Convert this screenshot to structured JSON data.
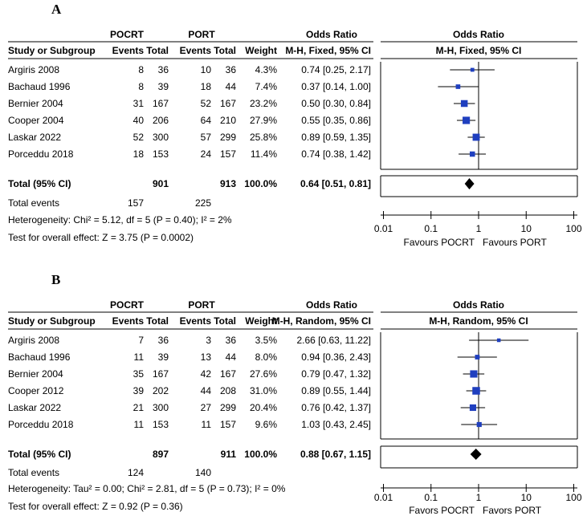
{
  "chart_data": [
    {
      "type": "forest",
      "panel": "A",
      "group_headers": [
        "POCRT",
        "PORT"
      ],
      "columns": [
        "Study or Subgroup",
        "Events",
        "Total",
        "Events",
        "Total",
        "Weight",
        "Odds Ratio",
        "Odds Ratio"
      ],
      "method": "M-H, Fixed, 95% CI",
      "studies": [
        {
          "name": "Argiris 2008",
          "e1": "8",
          "n1": "36",
          "e2": "10",
          "n2": "36",
          "weight": "4.3%",
          "ci_text": "0.74 [0.25, 2.17]",
          "or": 0.74,
          "lo": 0.25,
          "hi": 2.17,
          "w": 4.3
        },
        {
          "name": "Bachaud 1996",
          "e1": "8",
          "n1": "39",
          "e2": "18",
          "n2": "44",
          "weight": "7.4%",
          "ci_text": "0.37 [0.14, 1.00]",
          "or": 0.37,
          "lo": 0.14,
          "hi": 1.0,
          "w": 7.4
        },
        {
          "name": "Bernier 2004",
          "e1": "31",
          "n1": "167",
          "e2": "52",
          "n2": "167",
          "weight": "23.2%",
          "ci_text": "0.50 [0.30, 0.84]",
          "or": 0.5,
          "lo": 0.3,
          "hi": 0.84,
          "w": 23.2
        },
        {
          "name": "Cooper 2004",
          "e1": "40",
          "n1": "206",
          "e2": "64",
          "n2": "210",
          "weight": "27.9%",
          "ci_text": "0.55 [0.35, 0.86]",
          "or": 0.55,
          "lo": 0.35,
          "hi": 0.86,
          "w": 27.9
        },
        {
          "name": "Laskar 2022",
          "e1": "52",
          "n1": "300",
          "e2": "57",
          "n2": "299",
          "weight": "25.8%",
          "ci_text": "0.89 [0.59, 1.35]",
          "or": 0.89,
          "lo": 0.59,
          "hi": 1.35,
          "w": 25.8
        },
        {
          "name": "Porceddu 2018",
          "e1": "18",
          "n1": "153",
          "e2": "24",
          "n2": "157",
          "weight": "11.4%",
          "ci_text": "0.74 [0.38, 1.42]",
          "or": 0.74,
          "lo": 0.38,
          "hi": 1.42,
          "w": 11.4
        }
      ],
      "total": {
        "label": "Total (95% CI)",
        "n1": "901",
        "n2": "913",
        "weight": "100.0%",
        "ci_text": "0.64 [0.51, 0.81]",
        "or": 0.64,
        "lo": 0.51,
        "hi": 0.81
      },
      "total_events": {
        "label": "Total events",
        "e1": "157",
        "e2": "225"
      },
      "heterogeneity": "Heterogeneity: Chi² = 5.12, df = 5 (P = 0.40); I² = 2%",
      "overall_effect": "Test for overall effect: Z = 3.75 (P = 0.0002)",
      "axis": {
        "ticks": [
          "0.01",
          "0.1",
          "1",
          "10",
          "100"
        ],
        "tick_values": [
          0.01,
          0.1,
          1,
          10,
          100
        ],
        "xlim": [
          0.01,
          100
        ],
        "scale": "log"
      },
      "favours_left": "Favours POCRT",
      "favours_right": "Favours PORT"
    },
    {
      "type": "forest",
      "panel": "B",
      "group_headers": [
        "POCRT",
        "PORT"
      ],
      "columns": [
        "Study or Subgroup",
        "Events",
        "Total",
        "Events",
        "Total",
        "Weight",
        "Odds Ratio",
        "Odds Ratio"
      ],
      "method": "M-H, Random, 95% CI",
      "studies": [
        {
          "name": "Argiris 2008",
          "e1": "7",
          "n1": "36",
          "e2": "3",
          "n2": "36",
          "weight": "3.5%",
          "ci_text": "2.66 [0.63, 11.22]",
          "or": 2.66,
          "lo": 0.63,
          "hi": 11.22,
          "w": 3.5
        },
        {
          "name": "Bachaud 1996",
          "e1": "11",
          "n1": "39",
          "e2": "13",
          "n2": "44",
          "weight": "8.0%",
          "ci_text": "0.94 [0.36, 2.43]",
          "or": 0.94,
          "lo": 0.36,
          "hi": 2.43,
          "w": 8.0
        },
        {
          "name": "Bernier 2004",
          "e1": "35",
          "n1": "167",
          "e2": "42",
          "n2": "167",
          "weight": "27.6%",
          "ci_text": "0.79 [0.47, 1.32]",
          "or": 0.79,
          "lo": 0.47,
          "hi": 1.32,
          "w": 27.6
        },
        {
          "name": "Cooper 2012",
          "e1": "39",
          "n1": "202",
          "e2": "44",
          "n2": "208",
          "weight": "31.0%",
          "ci_text": "0.89 [0.55, 1.44]",
          "or": 0.89,
          "lo": 0.55,
          "hi": 1.44,
          "w": 31.0
        },
        {
          "name": "Laskar 2022",
          "e1": "21",
          "n1": "300",
          "e2": "27",
          "n2": "299",
          "weight": "20.4%",
          "ci_text": "0.76 [0.42, 1.37]",
          "or": 0.76,
          "lo": 0.42,
          "hi": 1.37,
          "w": 20.4
        },
        {
          "name": "Porceddu 2018",
          "e1": "11",
          "n1": "153",
          "e2": "11",
          "n2": "157",
          "weight": "9.6%",
          "ci_text": "1.03 [0.43, 2.45]",
          "or": 1.03,
          "lo": 0.43,
          "hi": 2.45,
          "w": 9.6
        }
      ],
      "total": {
        "label": "Total (95% CI)",
        "n1": "897",
        "n2": "911",
        "weight": "100.0%",
        "ci_text": "0.88 [0.67, 1.15]",
        "or": 0.88,
        "lo": 0.67,
        "hi": 1.15
      },
      "total_events": {
        "label": "Total events",
        "e1": "124",
        "e2": "140"
      },
      "heterogeneity": "Heterogeneity: Tau² = 0.00; Chi² = 2.81, df = 5 (P = 0.73); I² = 0%",
      "overall_effect": "Test for overall effect: Z = 0.92 (P = 0.36)",
      "axis": {
        "ticks": [
          "0.01",
          "0.1",
          "1",
          "10",
          "100"
        ],
        "tick_values": [
          0.01,
          0.1,
          1,
          10,
          100
        ],
        "xlim": [
          0.01,
          100
        ],
        "scale": "log"
      },
      "favours_left": "Favors POCRT",
      "favours_right": "Favors PORT"
    }
  ],
  "colors": {
    "marker": "#1f3fbf",
    "line": "#000000",
    "total_diamond": "#000000"
  }
}
